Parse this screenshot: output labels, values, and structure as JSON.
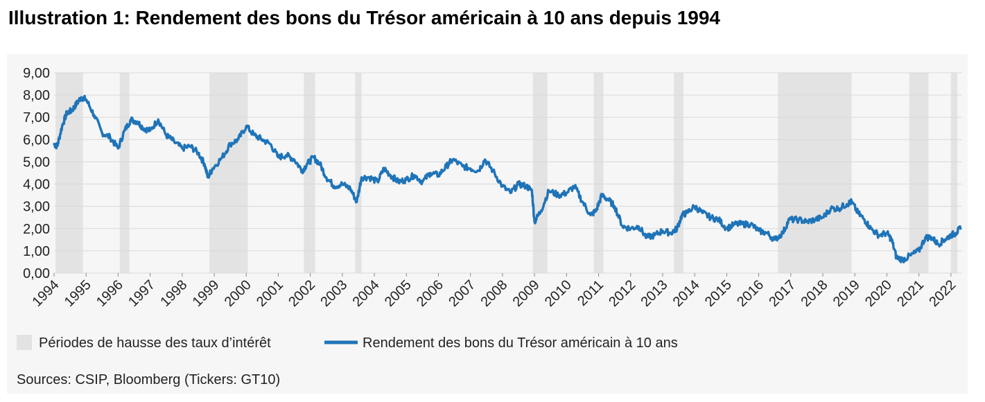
{
  "title": "Illustration 1: Rendement des bons du Trésor américain à 10 ans depuis 1994",
  "source": "Sources: CSIP, Bloomberg (Tickers: GT10)",
  "colors": {
    "line": "#1f74b8",
    "shade": "#e3e3e3",
    "grid": "#d9d9d9",
    "panel": "#f6f6f6"
  },
  "chart_data": {
    "type": "line",
    "title": "",
    "xlabel": "",
    "ylabel": "",
    "ylim": [
      0,
      9
    ],
    "xlim": [
      1994.0,
      2022.35
    ],
    "grid": true,
    "legend_placement": "bottom-left",
    "y_ticks": [
      "0,00",
      "1,00",
      "2,00",
      "3,00",
      "4,00",
      "5,00",
      "6,00",
      "7,00",
      "8,00",
      "9,00"
    ],
    "x_ticks": [
      "1994",
      "1995",
      "1996",
      "1997",
      "1998",
      "1999",
      "2000",
      "2001",
      "2002",
      "2003",
      "2004",
      "2005",
      "2006",
      "2007",
      "2008",
      "2009",
      "2010",
      "2011",
      "2012",
      "2013",
      "2014",
      "2015",
      "2016",
      "2017",
      "2018",
      "2019",
      "2020",
      "2021",
      "2022"
    ],
    "legend": [
      {
        "name": "Périodes de hausse des taux d’intérêt",
        "kind": "area"
      },
      {
        "name": "Rendement des bons du Trésor américain à 10 ans",
        "kind": "line"
      }
    ],
    "shaded_periods": [
      [
        1994.05,
        1994.9
      ],
      [
        1996.05,
        1996.35
      ],
      [
        1998.85,
        2000.05
      ],
      [
        2001.8,
        2002.15
      ],
      [
        2003.4,
        2003.6
      ],
      [
        2008.95,
        2009.4
      ],
      [
        2010.85,
        2011.15
      ],
      [
        2013.35,
        2013.65
      ],
      [
        2016.6,
        2018.9
      ],
      [
        2020.7,
        2021.3
      ],
      [
        2022.0,
        2022.2
      ]
    ],
    "series": [
      {
        "name": "Rendement des bons du Trésor américain à 10 ans",
        "x": [
          1994.0,
          1994.1,
          1994.25,
          1994.4,
          1994.55,
          1994.7,
          1994.85,
          1995.0,
          1995.25,
          1995.5,
          1995.75,
          1996.0,
          1996.2,
          1996.4,
          1996.6,
          1996.8,
          1997.0,
          1997.25,
          1997.5,
          1997.75,
          1998.0,
          1998.25,
          1998.5,
          1998.7,
          1998.8,
          1998.95,
          1999.25,
          1999.5,
          1999.75,
          2000.0,
          2000.25,
          2000.5,
          2000.75,
          2001.0,
          2001.25,
          2001.5,
          2001.75,
          2001.9,
          2002.1,
          2002.3,
          2002.5,
          2002.75,
          2003.0,
          2003.25,
          2003.45,
          2003.6,
          2003.85,
          2004.1,
          2004.3,
          2004.5,
          2004.75,
          2005.0,
          2005.25,
          2005.5,
          2005.75,
          2006.0,
          2006.25,
          2006.45,
          2006.75,
          2007.0,
          2007.25,
          2007.45,
          2007.7,
          2008.0,
          2008.25,
          2008.5,
          2008.75,
          2008.92,
          2009.0,
          2009.2,
          2009.45,
          2009.75,
          2010.0,
          2010.25,
          2010.5,
          2010.75,
          2010.92,
          2011.1,
          2011.3,
          2011.5,
          2011.75,
          2012.0,
          2012.25,
          2012.5,
          2012.75,
          2013.0,
          2013.25,
          2013.45,
          2013.6,
          2013.75,
          2014.0,
          2014.25,
          2014.5,
          2014.75,
          2015.0,
          2015.25,
          2015.5,
          2015.75,
          2016.0,
          2016.25,
          2016.5,
          2016.75,
          2016.95,
          2017.25,
          2017.5,
          2017.75,
          2018.0,
          2018.25,
          2018.5,
          2018.75,
          2018.9,
          2019.1,
          2019.3,
          2019.5,
          2019.75,
          2020.0,
          2020.15,
          2020.3,
          2020.5,
          2020.75,
          2021.0,
          2021.2,
          2021.4,
          2021.6,
          2021.8,
          2022.0,
          2022.15,
          2022.3
        ],
        "values": [
          5.8,
          5.7,
          6.6,
          7.2,
          7.3,
          7.6,
          7.9,
          7.8,
          7.1,
          6.3,
          6.1,
          5.6,
          6.4,
          6.9,
          6.8,
          6.5,
          6.4,
          6.9,
          6.2,
          5.9,
          5.6,
          5.7,
          5.4,
          4.9,
          4.3,
          4.7,
          5.2,
          5.8,
          6.0,
          6.6,
          6.2,
          6.0,
          5.8,
          5.2,
          5.3,
          5.1,
          4.6,
          4.9,
          5.2,
          4.9,
          4.3,
          3.9,
          4.0,
          3.8,
          3.2,
          4.3,
          4.3,
          4.1,
          4.7,
          4.4,
          4.1,
          4.2,
          4.4,
          4.1,
          4.5,
          4.4,
          4.8,
          5.1,
          4.8,
          4.7,
          4.6,
          5.1,
          4.6,
          3.9,
          3.6,
          4.0,
          3.9,
          3.7,
          2.3,
          2.8,
          3.7,
          3.5,
          3.6,
          3.9,
          3.2,
          2.6,
          2.8,
          3.5,
          3.3,
          3.0,
          2.1,
          2.0,
          2.1,
          1.6,
          1.7,
          1.9,
          1.8,
          2.0,
          2.6,
          2.7,
          3.0,
          2.7,
          2.5,
          2.4,
          2.0,
          2.2,
          2.2,
          2.2,
          1.9,
          1.8,
          1.5,
          1.8,
          2.4,
          2.4,
          2.3,
          2.4,
          2.5,
          2.9,
          2.9,
          3.1,
          3.2,
          2.7,
          2.4,
          2.0,
          1.7,
          1.8,
          1.5,
          0.7,
          0.6,
          0.8,
          1.0,
          1.6,
          1.6,
          1.3,
          1.5,
          1.7,
          1.8,
          2.0
        ]
      }
    ]
  }
}
